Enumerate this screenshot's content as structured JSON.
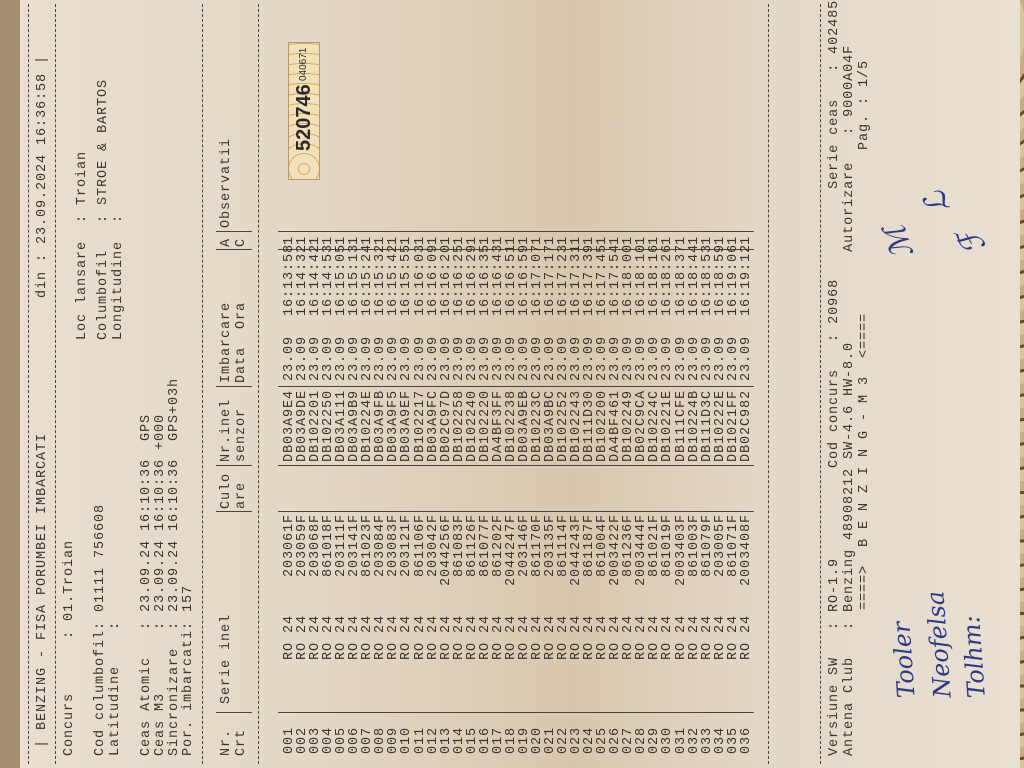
{
  "header": {
    "title": "| BENZING - FISA PORUMBEI IMBARCATI",
    "din": "din : 23.09.2024 16:36:58 |",
    "concurs": "Concurs      : 01.Troian",
    "loc_lansare": "Loc lansare  : Troian",
    "cod_columbofil": "Cod columbofil: 01111 756608",
    "latitudine": "Latitudine    :",
    "columbofil": "Columbofil   : STROE & BARTOS",
    "longitudine": "Longitudine  :",
    "ceas_atomic": "Ceas Atomic   : 23.09.24 16:10:36  GPS",
    "ceas_m3": "Ceas M3       : 23.09.24 16:10:36 +000",
    "sincronizare": "Sincronizare  : 23.09.24 16:10:36  GPS+03h",
    "por_imbarcati": "Por. imbarcati: 157"
  },
  "columns": {
    "nr_1": "Nr.",
    "nr_2": "Crt",
    "serie": "Serie inel",
    "culoare_1": "Culo",
    "culoare_2": "are",
    "senzor_1": "Nr.inel",
    "senzor_2": "senzor",
    "imbarcare_1": "Imbarcare",
    "imbarcare_2": "Data  Ora",
    "ac_1": "A",
    "ac_2": "C",
    "observatii": "Observatii"
  },
  "rows": [
    [
      "001",
      "RO 24",
      "203061F",
      "DB03A9E4",
      "23.09",
      "16:13:58",
      "1"
    ],
    [
      "002",
      "RO 24",
      "203059F",
      "DB03A9DE",
      "23.09",
      "16:14:32",
      "1"
    ],
    [
      "003",
      "RO 24",
      "203068F",
      "DB102201",
      "23.09",
      "16:14:42",
      "1"
    ],
    [
      "004",
      "RO 24",
      "861018F",
      "DB102250",
      "23.09",
      "16:14:53",
      "1"
    ],
    [
      "005",
      "RO 24",
      "203111F",
      "DB03A111",
      "23.09",
      "16:15:05",
      "1"
    ],
    [
      "006",
      "RO 24",
      "203141F",
      "DB03A9B9",
      "23.09",
      "16:15:13",
      "1"
    ],
    [
      "007",
      "RO 24",
      "861023F",
      "DB10224E",
      "23.09",
      "16:15:24",
      "1"
    ],
    [
      "008",
      "RO 24",
      "203084F",
      "DB03A9FB",
      "23.09",
      "16:15:32",
      "1"
    ],
    [
      "009",
      "RO 24",
      "203083F",
      "DB03A9F5",
      "23.09",
      "16:15:42",
      "1"
    ],
    [
      "010",
      "RO 24",
      "203121F",
      "DB03A9EF",
      "23.09",
      "16:15:55",
      "1"
    ],
    [
      "011",
      "RO 24",
      "861106F",
      "DB102217",
      "23.09",
      "16:16:03",
      "1"
    ],
    [
      "012",
      "RO 24",
      "203042F",
      "DB03A9FC",
      "23.09",
      "16:16:09",
      "1"
    ],
    [
      "013",
      "RO 24",
      "2044256F",
      "DB02C97D",
      "23.09",
      "16:16:20",
      "1"
    ],
    [
      "014",
      "RO 24",
      "861083F",
      "DB102258",
      "23.09",
      "16:16:25",
      "1"
    ],
    [
      "015",
      "RO 24",
      "861126F",
      "DB102240",
      "23.09",
      "16:16:29",
      "1"
    ],
    [
      "016",
      "RO 24",
      "861077F",
      "DB102220",
      "23.09",
      "16:16:35",
      "1"
    ],
    [
      "017",
      "RO 24",
      "861202F",
      "DA4BF3FF",
      "23.09",
      "16:16:43",
      "1"
    ],
    [
      "018",
      "RO 24",
      "2044247F",
      "DB102238",
      "23.09",
      "16:16:51",
      "1"
    ],
    [
      "019",
      "RO 24",
      "203146F",
      "DB03A9EB",
      "23.09",
      "16:16:59",
      "1"
    ],
    [
      "020",
      "RO 24",
      "861170F",
      "DB10223C",
      "23.09",
      "16:17:07",
      "1"
    ],
    [
      "021",
      "RO 24",
      "203135F",
      "DB03A9BC",
      "23.09",
      "16:17:17",
      "1"
    ],
    [
      "022",
      "RO 24",
      "861114F",
      "DB102252",
      "23.09",
      "16:17:23",
      "1"
    ],
    [
      "023",
      "RO 24",
      "2044243F",
      "DB102243",
      "23.09",
      "16:17:31",
      "1"
    ],
    [
      "024",
      "RO 24",
      "861187F",
      "DB111D30",
      "23.09",
      "16:17:39",
      "1"
    ],
    [
      "025",
      "RO 24",
      "861004F",
      "DB102200",
      "23.09",
      "16:17:45",
      "1"
    ],
    [
      "026",
      "RO 24",
      "2003422F",
      "DA4BF461",
      "23.09",
      "16:17:54",
      "1"
    ],
    [
      "027",
      "RO 24",
      "861236F",
      "DB102249",
      "23.09",
      "16:18:00",
      "1"
    ],
    [
      "028",
      "RO 24",
      "2003444F",
      "DB02C9CA",
      "23.09",
      "16:18:10",
      "1"
    ],
    [
      "029",
      "RO 24",
      "861021F",
      "DB10224C",
      "23.09",
      "16:18:16",
      "1"
    ],
    [
      "030",
      "RO 24",
      "861019F",
      "DB10221E",
      "23.09",
      "16:18:26",
      "1"
    ],
    [
      "031",
      "RO 24",
      "2003403F",
      "DB111CFE",
      "23.09",
      "16:18:37",
      "1"
    ],
    [
      "032",
      "RO 24",
      "861003F",
      "DB10224B",
      "23.09",
      "16:18:44",
      "1"
    ],
    [
      "033",
      "RO 24",
      "861079F",
      "DB111D3C",
      "23.09",
      "16:18:53",
      "1"
    ],
    [
      "034",
      "RO 24",
      "203005F",
      "DB10222E",
      "23.09",
      "16:18:59",
      "1"
    ],
    [
      "035",
      "RO 24",
      "861071F",
      "DB1021FF",
      "23.09",
      "16:19:06",
      "1"
    ],
    [
      "036",
      "RO 24",
      "2003408F",
      "DB02C982",
      "23.09",
      "16:19:12",
      "1"
    ]
  ],
  "sticker": {
    "number": "520746",
    "code": "040671"
  },
  "footer": {
    "versiune": "Versiune SW   : RO-1.9          Cod concurs   : 20968          Serie ceas   : 402485",
    "antena": "Antena Club   : Benzing 48908212 SW-4.6 HW-8.0          Autorizare   : 9000A04F",
    "banner": "====>  B E N Z I N G - M 3  <====",
    "pag": "Pag. : 1/5"
  },
  "handwritten": {
    "line1": "Tooler",
    "line2": "Neofelsa",
    "line3": "Tolhm:"
  },
  "colors": {
    "paper": "#e6dbcb",
    "ink": "#3a3530",
    "pen": "#2c3a86"
  }
}
